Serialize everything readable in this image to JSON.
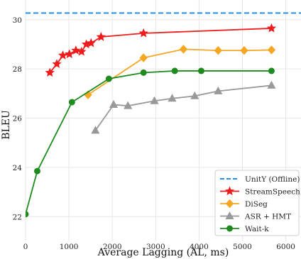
{
  "chart_data": {
    "type": "line",
    "title": "",
    "xlabel": "Average Lagging (AL, ms)",
    "ylabel": "BLEU",
    "xlim": [
      0,
      6350
    ],
    "ylim": [
      21.0,
      30.8
    ],
    "xticks": [
      0,
      1000,
      2000,
      3000,
      4000,
      5000,
      6000
    ],
    "yticks": [
      22,
      24,
      26,
      28,
      30
    ],
    "grid": true,
    "legend_position": "bottom-right",
    "reference_lines": [
      {
        "name": "UnitY (Offline)",
        "y": 30.27,
        "style": "dashed",
        "color": "#1f8ff0"
      }
    ],
    "series": [
      {
        "name": "StreamSpeech",
        "color": "#ee1c1c",
        "marker": "star",
        "x": [
          560,
          720,
          860,
          1010,
          1160,
          1290,
          1400,
          1510,
          1740,
          2720,
          5670
        ],
        "y": [
          27.85,
          28.2,
          28.55,
          28.6,
          28.75,
          28.7,
          29.0,
          29.05,
          29.3,
          29.45,
          29.65
        ]
      },
      {
        "name": "DiSeg",
        "color": "#f5a623",
        "marker": "diamond",
        "x": [
          1440,
          2720,
          3640,
          4440,
          5040,
          5670
        ],
        "y": [
          26.95,
          28.45,
          28.8,
          28.75,
          28.75,
          28.77
        ]
      },
      {
        "name": "ASR + HMT",
        "color": "#999999",
        "marker": "triangle",
        "x": [
          1610,
          2030,
          2360,
          2970,
          3380,
          3900,
          4440,
          5670
        ],
        "y": [
          25.5,
          26.55,
          26.5,
          26.7,
          26.8,
          26.9,
          27.1,
          27.33
        ]
      },
      {
        "name": "Wait-k",
        "color": "#1f8a1f",
        "marker": "circle",
        "x": [
          0,
          270,
          1070,
          1920,
          2720,
          3440,
          4050,
          5670
        ],
        "y": [
          22.1,
          23.85,
          26.65,
          27.6,
          27.85,
          27.92,
          27.92,
          27.92
        ]
      }
    ]
  }
}
